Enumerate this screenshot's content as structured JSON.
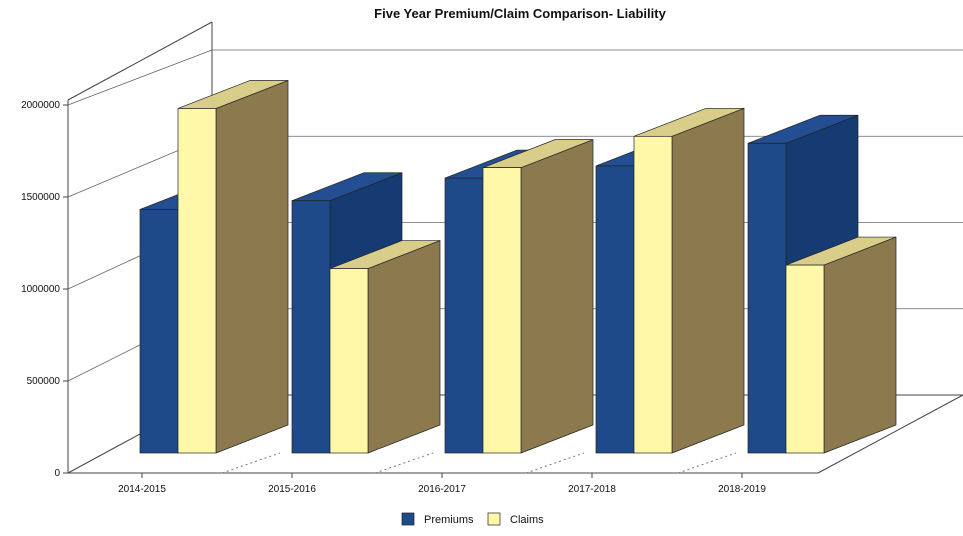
{
  "chart_data": {
    "type": "bar",
    "title": "Five Year Premium/Claim  Comparison- Liability",
    "categories": [
      "2014-2015",
      "2015-2016",
      "2016-2017",
      "2017-2018",
      "2018-2019"
    ],
    "series": [
      {
        "name": "Premiums",
        "values": [
          1400000,
          1450000,
          1580000,
          1650000,
          1780000
        ]
      },
      {
        "name": "Claims",
        "values": [
          1980000,
          1060000,
          1640000,
          1820000,
          1080000
        ]
      }
    ],
    "yticks": [
      "0",
      "500000",
      "1000000",
      "1500000",
      "2000000"
    ],
    "ylim": [
      0,
      2000000
    ],
    "style": "3d-bar",
    "grid": true,
    "legend_position": "bottom",
    "colors": {
      "Premiums": "#1f4a8a",
      "Claims": "#fff8a8",
      "side": "#8c7a4e",
      "top": "#d9cd8a",
      "premium_side": "#163a72",
      "premium_top": "#234f92"
    }
  }
}
